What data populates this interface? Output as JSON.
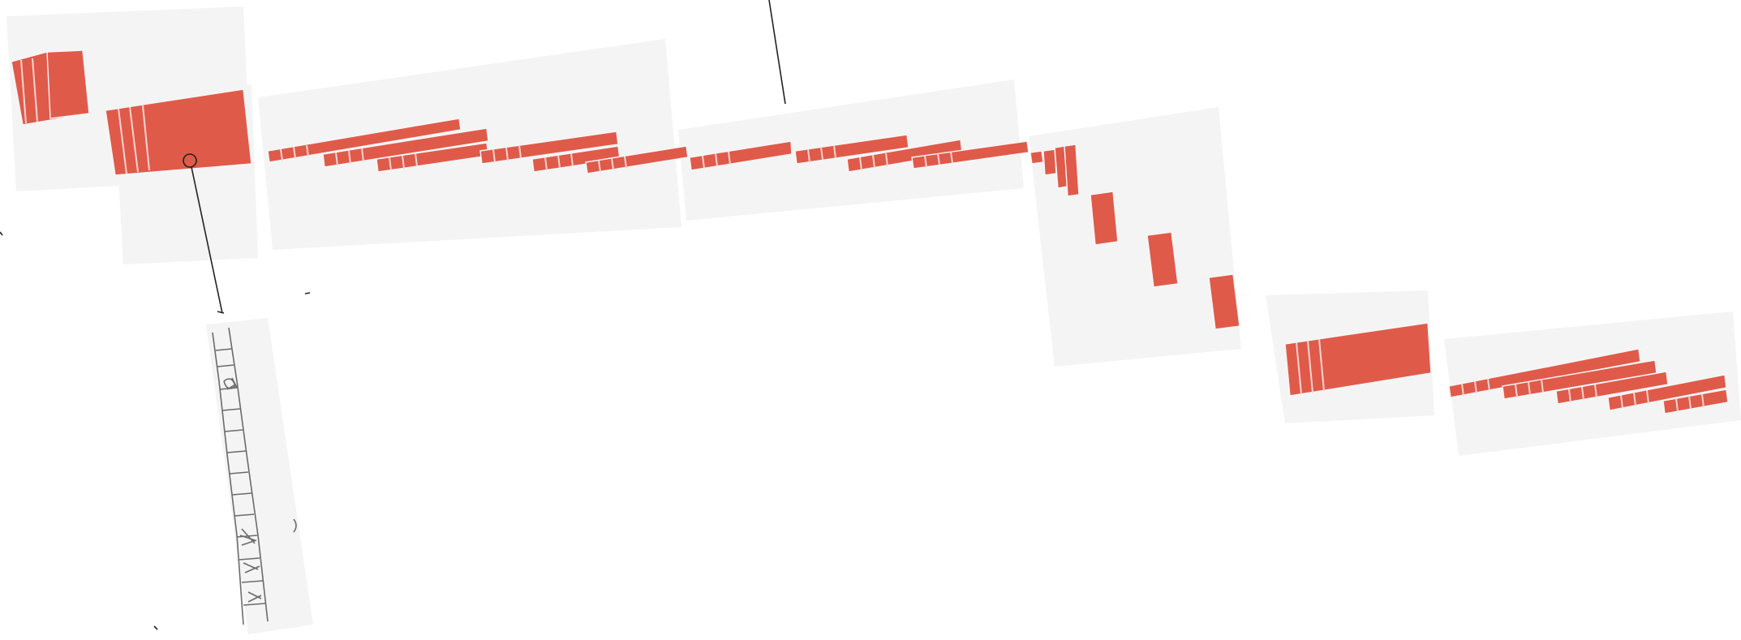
{
  "colors": {
    "block": "#e05a4a",
    "tile": "#f4f4f4",
    "background": "#ffffff",
    "ink": "#222222",
    "pencil": "#6b6b6b"
  },
  "sketch": {
    "icon": "hand-drawn-ladder-sketch"
  }
}
